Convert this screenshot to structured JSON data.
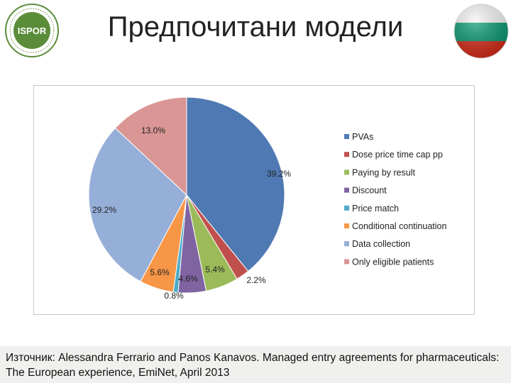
{
  "header": {
    "title": "Предпочитани модели",
    "logo_text": "ISPOR",
    "logo_ring_text": "INTERNATIONAL SOCIETY FOR PHARMACOECONOMICS AND OUTCOMES RESEARCH",
    "flag": "Bulgaria",
    "flag_colors": [
      "#ffffff",
      "#00966e",
      "#d62612"
    ]
  },
  "chart_data": {
    "type": "pie",
    "title": "",
    "categories": [
      "PVAs",
      "Dose price time cap pp",
      "Paying by result",
      "Discount",
      "Price match",
      "Conditional continuation",
      "Data collection",
      "Only eligible patients"
    ],
    "values": [
      39.2,
      2.2,
      5.4,
      4.6,
      0.8,
      5.6,
      29.2,
      13.0
    ],
    "labels": [
      "39.2%",
      "2.2%",
      "5.4%",
      "4.6%",
      "0.8%",
      "5.6%",
      "29.2%",
      "13.0%"
    ],
    "colors": [
      "#4f79b2",
      "#c0504d",
      "#9bbb59",
      "#8064a2",
      "#4bacc6",
      "#f79646",
      "#95afd8",
      "#d99694"
    ],
    "start_angle": "12 o'clock",
    "direction": "clockwise",
    "legend_position": "right"
  },
  "source": {
    "text": "Източник: Alessandra Ferrario and Panos Kanavos. Managed entry agreements for pharmaceuticals: The European experience, EmiNet, April 2013"
  }
}
